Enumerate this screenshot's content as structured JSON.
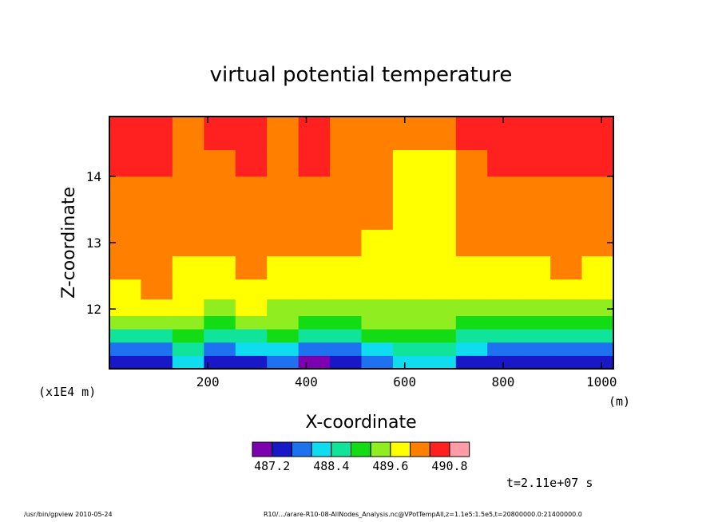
{
  "chart_data": {
    "type": "heatmap",
    "title": "virtual potential temperature",
    "xlabel": "X-coordinate",
    "ylabel": "Z-coordinate",
    "x_unit": "(m)",
    "y_scale_note": "(x1E4 m)",
    "xlim": [
      0,
      1024
    ],
    "ylim": [
      11.1,
      14.9
    ],
    "x_ticks": [
      200,
      400,
      600,
      800,
      1000
    ],
    "y_ticks": [
      12,
      13,
      14
    ],
    "x_tick_labels": [
      "200",
      "400",
      "600",
      "800",
      "1000"
    ],
    "y_tick_labels": [
      "12",
      "13",
      "14"
    ],
    "colorbar": {
      "colors": [
        "#7a00b0",
        "#1818c8",
        "#1e72f0",
        "#10dcf0",
        "#10e49a",
        "#14dc14",
        "#90ee20",
        "#ffff00",
        "#ff8000",
        "#ff2020",
        "#ff9ca8"
      ],
      "tick_labels": [
        "487.2",
        "488.4",
        "489.6",
        "490.8"
      ]
    },
    "levels_interval": 0.3,
    "time_note": "t=2.11e+07 s",
    "cells_note": "contour bands inferred from image: each column lists band index (0-10) from bottom, sampled at fixed z levels",
    "z_levels": [
      11.2,
      11.4,
      11.6,
      11.8,
      12.0,
      12.3,
      12.6,
      13.0,
      13.4,
      13.8,
      14.2,
      14.6
    ],
    "x_columns": [
      32,
      96,
      160,
      224,
      288,
      352,
      416,
      480,
      544,
      608,
      672,
      736,
      800,
      864,
      928,
      992
    ],
    "band_grid": [
      [
        1,
        2,
        4,
        6,
        7,
        7,
        8,
        8,
        8,
        8,
        9,
        9
      ],
      [
        1,
        2,
        4,
        6,
        7,
        8,
        8,
        8,
        8,
        8,
        9,
        9
      ],
      [
        3,
        4,
        5,
        6,
        7,
        7,
        7,
        8,
        8,
        8,
        8,
        8
      ],
      [
        1,
        2,
        4,
        5,
        6,
        7,
        7,
        8,
        8,
        8,
        8,
        9
      ],
      [
        1,
        3,
        4,
        6,
        7,
        7,
        8,
        8,
        8,
        8,
        9,
        9
      ],
      [
        2,
        3,
        5,
        6,
        6,
        7,
        7,
        8,
        8,
        8,
        8,
        8
      ],
      [
        0,
        2,
        4,
        5,
        6,
        7,
        7,
        8,
        8,
        8,
        9,
        9
      ],
      [
        1,
        2,
        4,
        5,
        6,
        7,
        7,
        8,
        8,
        8,
        8,
        8
      ],
      [
        2,
        3,
        5,
        6,
        6,
        7,
        7,
        7,
        8,
        8,
        8,
        8
      ],
      [
        3,
        4,
        5,
        6,
        6,
        7,
        7,
        7,
        7,
        7,
        7,
        8
      ],
      [
        3,
        4,
        5,
        6,
        6,
        7,
        7,
        7,
        7,
        7,
        7,
        8
      ],
      [
        1,
        3,
        4,
        5,
        6,
        7,
        7,
        8,
        8,
        8,
        8,
        9
      ],
      [
        1,
        2,
        4,
        5,
        6,
        7,
        7,
        8,
        8,
        8,
        9,
        9
      ],
      [
        1,
        2,
        4,
        5,
        6,
        7,
        7,
        8,
        8,
        8,
        9,
        9
      ],
      [
        1,
        2,
        4,
        5,
        6,
        7,
        8,
        8,
        8,
        8,
        9,
        9
      ],
      [
        1,
        2,
        4,
        5,
        6,
        7,
        7,
        8,
        8,
        8,
        9,
        9
      ]
    ]
  },
  "footer_left": "/usr/bin/gpview   2010-05-24",
  "footer_right": "R10/.../arare-R10-08-AllNodes_Analysis.nc@VPotTempAll,z=1.1e5:1.5e5,t=20800000.0:21400000.0"
}
